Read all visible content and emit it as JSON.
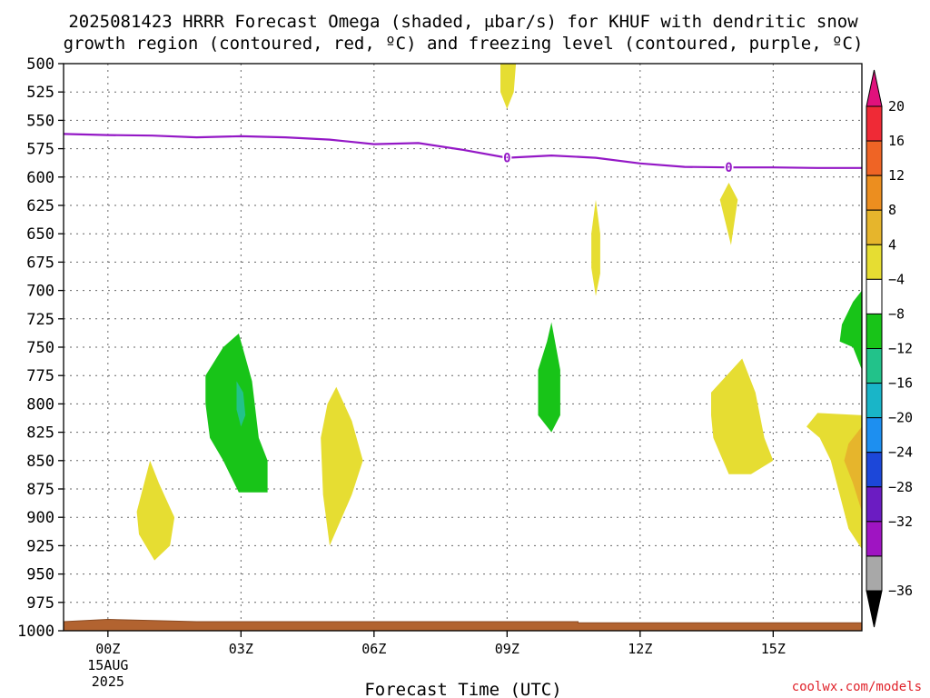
{
  "chart_data": {
    "type": "contour",
    "title_lines": [
      "2025081423 HRRR Forecast Omega (shaded, μbar/s) for KHUF with dendritic snow",
      "growth region (contoured, red, ºC) and freezing level (contoured, purple, ºC)"
    ],
    "xlabel": "Forecast Time (UTC)",
    "ylabel": "",
    "credit": "coolwx.com/models",
    "x_ticks": [
      {
        "hour": 0,
        "label": "00Z",
        "sub1": "15AUG",
        "sub2": "2025"
      },
      {
        "hour": 3,
        "label": "03Z"
      },
      {
        "hour": 6,
        "label": "06Z"
      },
      {
        "hour": 9,
        "label": "09Z"
      },
      {
        "hour": 12,
        "label": "12Z"
      },
      {
        "hour": 15,
        "label": "15Z"
      }
    ],
    "xlim_hours": [
      -1,
      17
    ],
    "ylim_hpa": [
      1000,
      500
    ],
    "y_ticks": [
      "500",
      "525",
      "550",
      "575",
      "600",
      "625",
      "650",
      "675",
      "700",
      "725",
      "750",
      "775",
      "800",
      "825",
      "850",
      "875",
      "900",
      "925",
      "950",
      "975",
      "1000"
    ],
    "colorbar": {
      "labels": [
        "20",
        "16",
        "12",
        "8",
        "4",
        "−4",
        "−8",
        "−12",
        "−16",
        "−20",
        "−24",
        "−28",
        "−32",
        "−36"
      ],
      "colors": [
        "#ef2a36",
        "#ef6425",
        "#ec8e1f",
        "#e6b52c",
        "#e6dd32",
        "#ffffff",
        "#18c418",
        "#22c28a",
        "#19b5c8",
        "#1d8ff0",
        "#1c47d9",
        "#6b1cc2",
        "#9f14c2",
        "#a8a8a8"
      ],
      "top_arrow_color": "#e0117c",
      "bottom_arrow_color": "#000000"
    },
    "freezing_level": {
      "color": "#9418c6",
      "label": "0",
      "hour": [
        -1,
        0,
        1,
        2,
        3,
        4,
        5,
        6,
        7,
        8,
        9,
        10,
        11,
        12,
        13,
        14,
        15,
        16,
        17
      ],
      "pressure": [
        562,
        563,
        563.5,
        565,
        564,
        565,
        567,
        571,
        570,
        576,
        583,
        581,
        583,
        588,
        591,
        591.5,
        591.5,
        592,
        592
      ],
      "label_hours": [
        9,
        14
      ]
    },
    "omega_regions": [
      {
        "color": "#e6dd32",
        "poly": [
          [
            8.85,
            500
          ],
          [
            9.2,
            500
          ],
          [
            9.15,
            525
          ],
          [
            9.0,
            540
          ],
          [
            8.85,
            525
          ]
        ]
      },
      {
        "color": "#e6dd32",
        "poly": [
          [
            11.0,
            620
          ],
          [
            11.1,
            650
          ],
          [
            11.1,
            685
          ],
          [
            11.0,
            705
          ],
          [
            10.9,
            680
          ],
          [
            10.9,
            650
          ]
        ]
      },
      {
        "color": "#e6dd32",
        "poly": [
          [
            14.0,
            605
          ],
          [
            14.2,
            620
          ],
          [
            14.05,
            660
          ],
          [
            13.8,
            620
          ]
        ]
      },
      {
        "color": "#18c418",
        "poly": [
          [
            10.0,
            728
          ],
          [
            10.2,
            770
          ],
          [
            10.2,
            810
          ],
          [
            10.0,
            825
          ],
          [
            9.7,
            810
          ],
          [
            9.7,
            770
          ],
          [
            9.9,
            745
          ]
        ]
      },
      {
        "color": "#18c418",
        "poly": [
          [
            2.95,
            738
          ],
          [
            3.25,
            780
          ],
          [
            3.4,
            830
          ],
          [
            3.6,
            850
          ],
          [
            3.6,
            878
          ],
          [
            2.95,
            878
          ],
          [
            2.6,
            850
          ],
          [
            2.3,
            830
          ],
          [
            2.2,
            800
          ],
          [
            2.2,
            775
          ],
          [
            2.6,
            750
          ]
        ]
      },
      {
        "color": "#22c28a",
        "poly": [
          [
            2.9,
            780
          ],
          [
            3.05,
            790
          ],
          [
            3.1,
            810
          ],
          [
            3.0,
            820
          ],
          [
            2.9,
            805
          ]
        ]
      },
      {
        "color": "#e6dd32",
        "poly": [
          [
            0.95,
            850
          ],
          [
            1.15,
            870
          ],
          [
            1.5,
            900
          ],
          [
            1.4,
            925
          ],
          [
            1.05,
            938
          ],
          [
            0.7,
            915
          ],
          [
            0.65,
            895
          ]
        ]
      },
      {
        "color": "#e6dd32",
        "poly": [
          [
            5.15,
            785
          ],
          [
            5.5,
            815
          ],
          [
            5.75,
            850
          ],
          [
            5.5,
            880
          ],
          [
            5.0,
            925
          ],
          [
            4.85,
            880
          ],
          [
            4.8,
            830
          ],
          [
            4.95,
            800
          ]
        ]
      },
      {
        "color": "#e6dd32",
        "poly": [
          [
            14.3,
            760
          ],
          [
            14.6,
            790
          ],
          [
            14.7,
            810
          ],
          [
            14.8,
            830
          ],
          [
            15.0,
            850
          ],
          [
            14.5,
            862
          ],
          [
            14.0,
            862
          ],
          [
            13.65,
            830
          ],
          [
            13.6,
            810
          ],
          [
            13.6,
            790
          ]
        ]
      },
      {
        "color": "#18c418",
        "poly": [
          [
            17.0,
            700
          ],
          [
            17.0,
            770
          ],
          [
            16.8,
            750
          ],
          [
            16.5,
            745
          ],
          [
            16.55,
            730
          ],
          [
            16.8,
            710
          ]
        ]
      },
      {
        "color": "#e6dd32",
        "poly": [
          [
            16.0,
            808
          ],
          [
            17.0,
            810
          ],
          [
            17.0,
            928
          ],
          [
            16.7,
            910
          ],
          [
            16.5,
            880
          ],
          [
            16.3,
            850
          ],
          [
            16.05,
            830
          ],
          [
            15.75,
            820
          ]
        ]
      },
      {
        "color": "#e6b52c",
        "poly": [
          [
            17.0,
            820
          ],
          [
            17.0,
            895
          ],
          [
            16.8,
            870
          ],
          [
            16.6,
            850
          ],
          [
            16.7,
            835
          ]
        ]
      }
    ],
    "terrain": {
      "color": "#b26330",
      "outline": "#8a4a22",
      "hour": [
        -1,
        0,
        1,
        2,
        10.6,
        10.6,
        17
      ],
      "pressure": [
        992,
        990,
        991,
        992,
        992,
        993,
        993
      ]
    }
  }
}
